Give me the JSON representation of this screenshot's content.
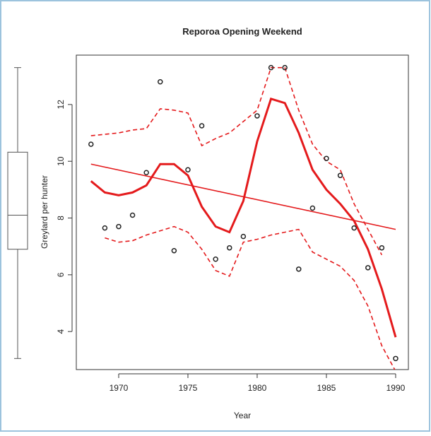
{
  "chart_data": {
    "type": "scatter",
    "title": "Reporoa Opening Weekend",
    "x_label": "Year",
    "y_label": "Greylard per hunter",
    "x": [
      1968,
      1969,
      1970,
      1971,
      1972,
      1973,
      1974,
      1975,
      1976,
      1977,
      1978,
      1979,
      1980,
      1981,
      1982,
      1983,
      1984,
      1985,
      1986,
      1987,
      1988,
      1989,
      1990
    ],
    "values": [
      10.6,
      7.65,
      7.7,
      8.1,
      9.6,
      12.8,
      6.85,
      9.7,
      11.25,
      6.55,
      6.95,
      7.35,
      11.6,
      13.3,
      13.3,
      6.2,
      8.35,
      10.1,
      9.5,
      7.65,
      6.25,
      6.95,
      3.05
    ],
    "point_color": "#222222",
    "lines": [
      {
        "color": "#e41a1c",
        "style": "solid",
        "width": 3,
        "values": [
          9.3,
          8.9,
          8.8,
          8.9,
          9.15,
          9.9,
          9.9,
          9.5,
          8.4,
          7.7,
          7.5,
          8.6,
          10.7,
          12.2,
          12.05,
          11.0,
          9.7,
          9.0,
          8.5,
          7.9,
          6.9,
          5.5,
          3.8
        ]
      },
      {
        "color": "#e41a1c",
        "style": "dashed",
        "width": 1.6,
        "values": [
          10.9,
          10.95,
          11.0,
          11.1,
          11.15,
          11.85,
          11.8,
          11.7,
          10.55,
          10.8,
          11.0,
          11.4,
          11.8,
          13.3,
          13.3,
          11.8,
          10.6,
          10.0,
          9.7,
          8.5,
          7.6,
          6.7,
          null
        ]
      },
      {
        "color": "#e41a1c",
        "style": "dashed",
        "width": 1.6,
        "values": [
          null,
          7.3,
          7.15,
          7.2,
          7.4,
          7.55,
          7.7,
          7.5,
          6.9,
          6.15,
          5.95,
          7.15,
          7.25,
          7.4,
          7.5,
          7.6,
          6.8,
          6.55,
          6.3,
          5.8,
          4.9,
          3.5,
          2.6
        ]
      }
    ],
    "trend": {
      "color": "#e41a1c",
      "x": [
        1968,
        1990
      ],
      "values": [
        9.9,
        7.6
      ]
    },
    "boxplot": {
      "min": 3.05,
      "q1": 6.9,
      "median": 8.1,
      "q3": 10.32,
      "max": 13.3
    },
    "xlim": [
      1966.94,
      1990.92
    ],
    "ylim": [
      2.66,
      13.74
    ],
    "xticks": [
      1970,
      1975,
      1980,
      1985,
      1990
    ],
    "yticks": [
      4,
      6,
      8,
      10,
      12
    ]
  }
}
